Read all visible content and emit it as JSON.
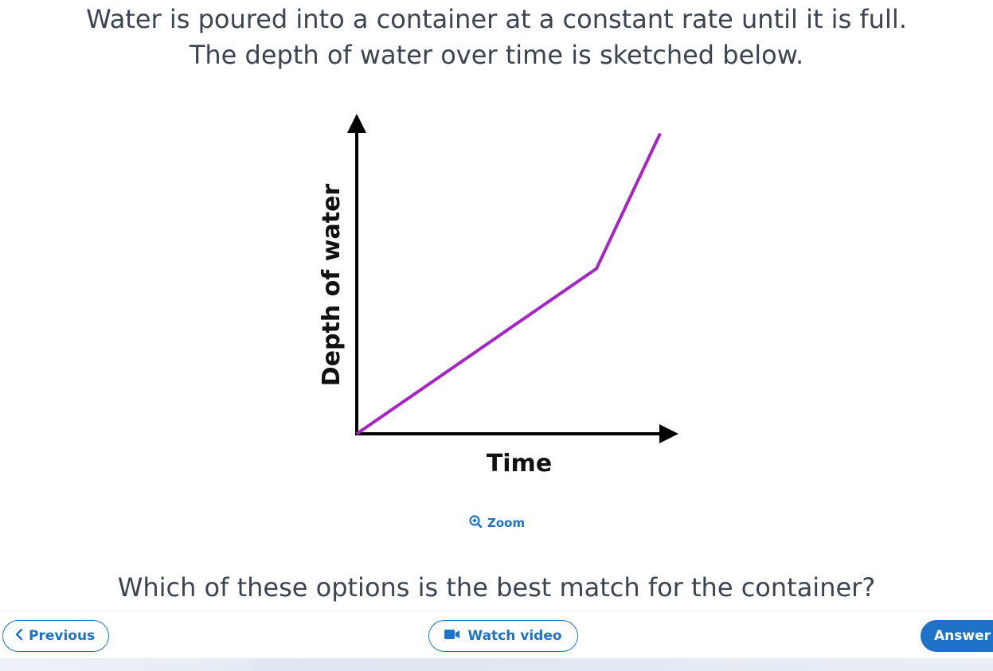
{
  "question": {
    "line1": "Water is poured into a container at a constant rate until it is full.",
    "line2": "The depth of water over time is sketched below."
  },
  "graph": {
    "ylabel": "Depth of water",
    "xlabel": "Time",
    "line_color": "#a526c4",
    "axis_color": "#000000"
  },
  "chart_data": {
    "type": "line",
    "title": "",
    "xlabel": "Time",
    "ylabel": "Depth of water",
    "x": [
      0,
      0.79,
      1.0
    ],
    "series": [
      {
        "values": [
          0,
          0.55,
          1.0
        ]
      }
    ],
    "xlim": [
      0,
      1.05
    ],
    "ylim": [
      0,
      1.06
    ],
    "grid": false
  },
  "zoom": {
    "icon": "zoom-in-icon",
    "label": "Zoom"
  },
  "prompt": "Which of these options is the best match for the container?",
  "toolbar": {
    "previous_label": "Previous",
    "previous_icon": "chevron-left-icon",
    "video_label": "Watch video",
    "video_icon": "video-camera-icon",
    "answer_label": "Answer"
  },
  "colors": {
    "accent": "#1e73c8",
    "text": "#3d4451",
    "graph_line": "#a526c4"
  }
}
